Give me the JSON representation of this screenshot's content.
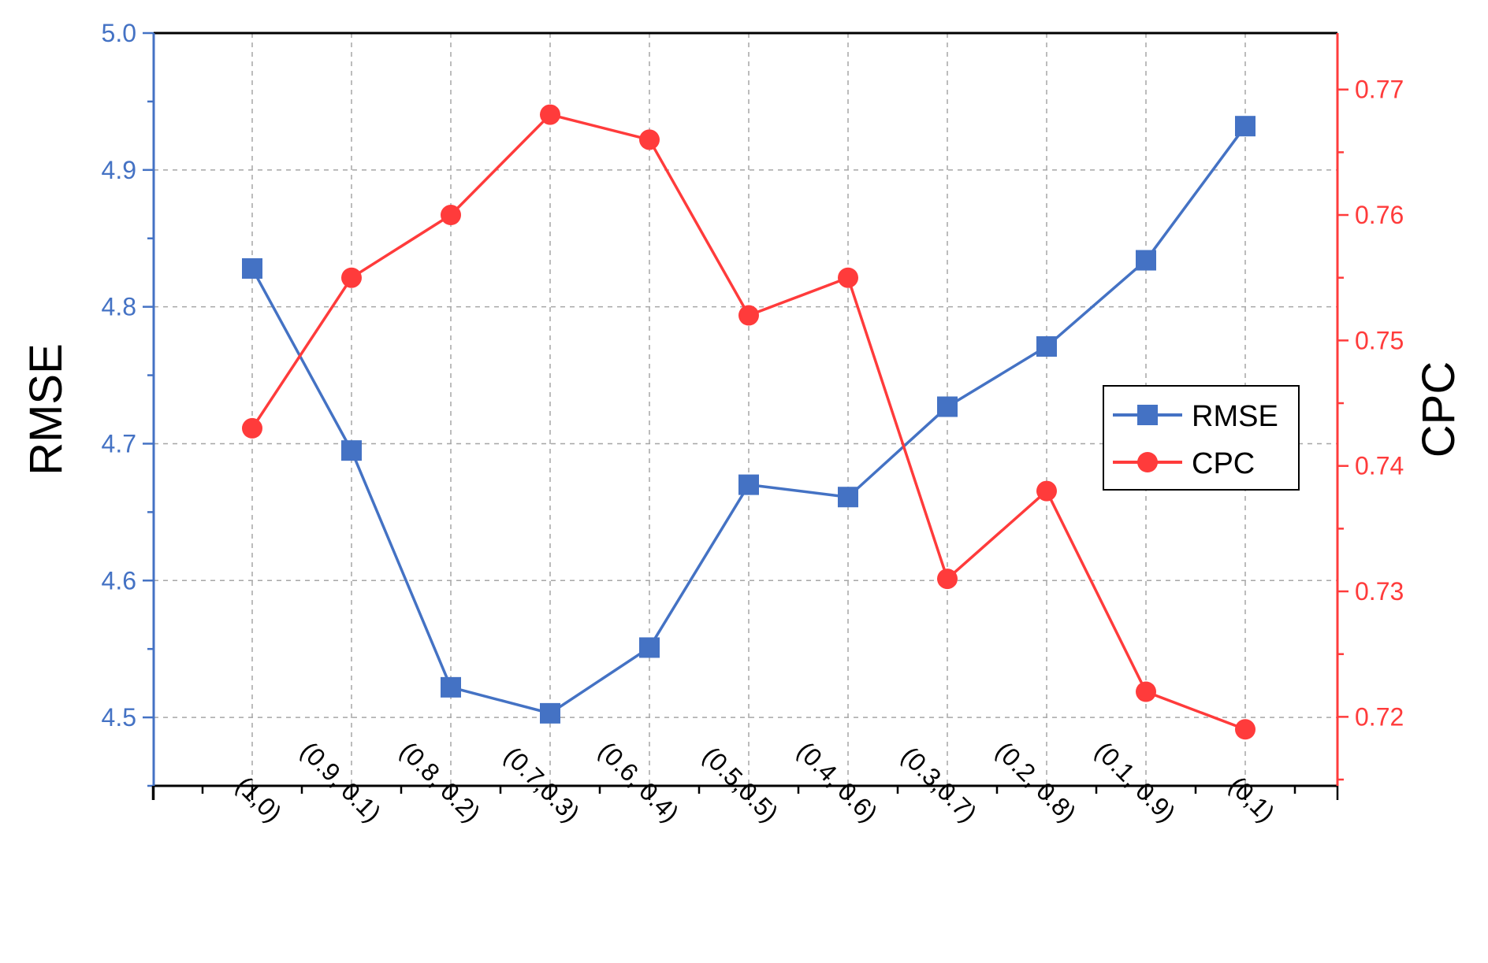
{
  "chart_data": {
    "type": "line",
    "categories": [
      "(1,0)",
      "(0.9, 0.1)",
      "(0.8, 0.2)",
      "(0.7,0.3)",
      "(0.6, 0.4)",
      "(0.5,0.5)",
      "(0.4, 0.6)",
      "(0.3,0.7)",
      "(0.2, 0.8)",
      "(0.1, 0.9)",
      "(0,1)"
    ],
    "series": [
      {
        "name": "RMSE",
        "axis": "left",
        "marker": "square",
        "color": "#4472C4",
        "values": [
          4.828,
          4.695,
          4.522,
          4.503,
          4.551,
          4.67,
          4.661,
          4.727,
          4.771,
          4.834,
          4.932
        ]
      },
      {
        "name": "CPC",
        "axis": "right",
        "marker": "circle",
        "color": "#FF3B3B",
        "values": [
          0.743,
          0.755,
          0.76,
          0.768,
          0.766,
          0.752,
          0.755,
          0.731,
          0.738,
          0.722,
          0.719
        ]
      }
    ],
    "ylabel": "RMSE",
    "y2label": "CPC",
    "ylim": [
      4.45,
      5.0
    ],
    "y2lim": [
      0.7145,
      0.7745
    ],
    "yticks": [
      "4.5",
      "4.6",
      "4.7",
      "4.8",
      "4.9",
      "5.0"
    ],
    "y2ticks": [
      "0.72",
      "0.73",
      "0.74",
      "0.75",
      "0.76",
      "0.77"
    ],
    "grid": true,
    "legend_position": "right-center",
    "axis_colors": {
      "left": "#4472C4",
      "right": "#FF3B3B",
      "bottom": "#000000"
    }
  }
}
